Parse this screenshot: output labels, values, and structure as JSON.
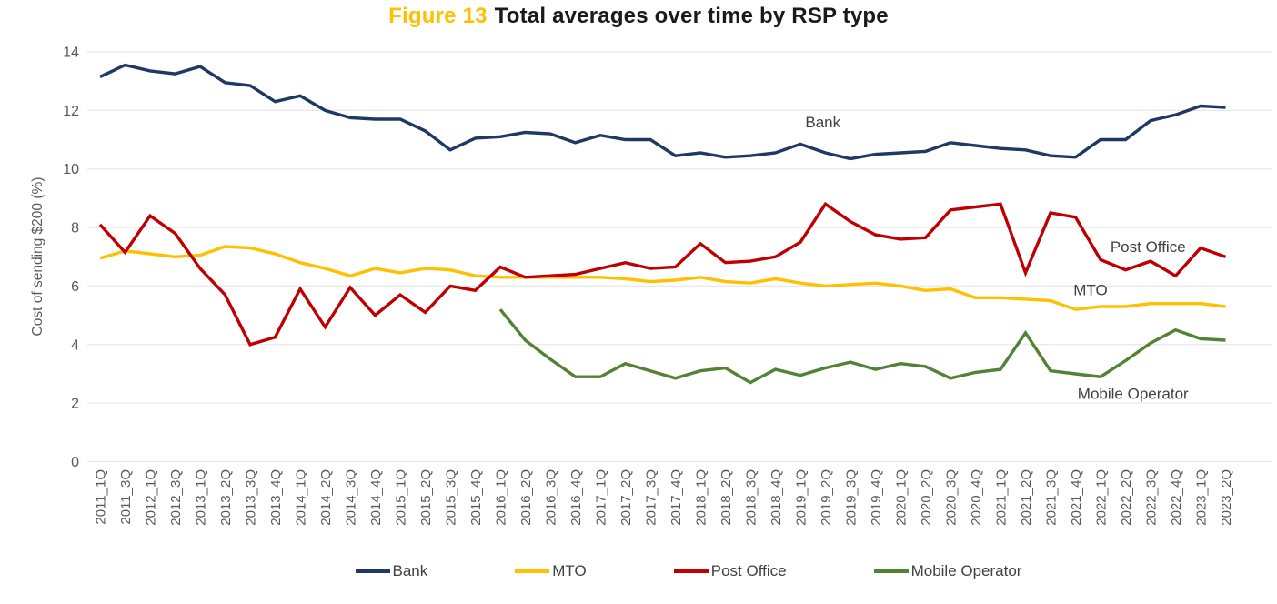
{
  "title": {
    "accent": "Figure 13",
    "main": "Total averages over time by RSP type"
  },
  "colors": {
    "title_accent": "#ffc000",
    "title_main": "#1a1a1a",
    "axis_text": "#595959",
    "annotation_text": "#404040",
    "gridline": "#e8e8e8"
  },
  "chart_data": {
    "type": "line",
    "title": "Figure 13 Total averages over time by RSP type",
    "xlabel": "",
    "ylabel": "Cost of sending $200 (%)",
    "ylim": [
      0,
      14
    ],
    "ytick_step": 2,
    "grid": true,
    "legend_position": "bottom",
    "categories": [
      "2011_1Q",
      "2011_3Q",
      "2012_1Q",
      "2012_3Q",
      "2013_1Q",
      "2013_2Q",
      "2013_3Q",
      "2013_4Q",
      "2014_1Q",
      "2014_2Q",
      "2014_3Q",
      "2014_4Q",
      "2015_1Q",
      "2015_2Q",
      "2015_3Q",
      "2015_4Q",
      "2016_1Q",
      "2016_2Q",
      "2016_3Q",
      "2016_4Q",
      "2017_1Q",
      "2017_2Q",
      "2017_3Q",
      "2017_4Q",
      "2018_1Q",
      "2018_2Q",
      "2018_3Q",
      "2018_4Q",
      "2019_1Q",
      "2019_2Q",
      "2019_3Q",
      "2019_4Q",
      "2020_1Q",
      "2020_2Q",
      "2020_3Q",
      "2020_4Q",
      "2021_1Q",
      "2021_2Q",
      "2021_3Q",
      "2021_4Q",
      "2022_1Q",
      "2022_2Q",
      "2022_3Q",
      "2022_4Q",
      "2023_1Q",
      "2023_2Q"
    ],
    "series": [
      {
        "name": "Bank",
        "color": "#1f3864",
        "values": [
          13.15,
          13.55,
          13.35,
          13.25,
          13.5,
          12.95,
          12.85,
          12.3,
          12.5,
          12.0,
          11.75,
          11.7,
          11.7,
          11.3,
          10.65,
          11.05,
          11.1,
          11.25,
          11.2,
          10.9,
          11.15,
          11.0,
          11.0,
          10.45,
          10.55,
          10.4,
          10.45,
          10.55,
          10.85,
          10.55,
          10.35,
          10.5,
          10.55,
          10.6,
          10.9,
          10.8,
          10.7,
          10.65,
          10.45,
          10.4,
          11.0,
          11.0,
          11.65,
          11.85,
          12.15,
          12.1
        ]
      },
      {
        "name": "MTO",
        "color": "#ffc000",
        "values": [
          6.95,
          7.2,
          7.1,
          7.0,
          7.05,
          7.35,
          7.3,
          7.1,
          6.8,
          6.6,
          6.35,
          6.6,
          6.45,
          6.6,
          6.55,
          6.35,
          6.3,
          6.3,
          6.3,
          6.3,
          6.3,
          6.25,
          6.15,
          6.2,
          6.3,
          6.15,
          6.1,
          6.25,
          6.1,
          6.0,
          6.05,
          6.1,
          6.0,
          5.85,
          5.9,
          5.6,
          5.6,
          5.55,
          5.5,
          5.2,
          5.3,
          5.3,
          5.4,
          5.4,
          5.4,
          5.3
        ]
      },
      {
        "name": "Post Office",
        "color": "#c00000",
        "values": [
          8.1,
          7.15,
          8.4,
          7.8,
          6.6,
          5.7,
          4.0,
          4.25,
          5.9,
          4.6,
          5.95,
          5.0,
          5.7,
          5.1,
          6.0,
          5.85,
          6.65,
          6.3,
          6.35,
          6.4,
          6.6,
          6.8,
          6.6,
          6.65,
          7.45,
          6.8,
          6.85,
          7.0,
          7.5,
          8.8,
          8.2,
          7.75,
          7.6,
          7.65,
          8.6,
          8.7,
          8.8,
          6.45,
          8.5,
          8.35,
          6.9,
          6.55,
          6.85,
          6.35,
          7.3,
          7.0
        ]
      },
      {
        "name": "Mobile Operator",
        "color": "#548235",
        "values": [
          null,
          null,
          null,
          null,
          null,
          null,
          null,
          null,
          null,
          null,
          null,
          null,
          null,
          null,
          null,
          null,
          5.2,
          4.15,
          3.5,
          2.9,
          2.9,
          3.35,
          3.1,
          2.85,
          3.1,
          3.2,
          2.7,
          3.15,
          2.95,
          3.2,
          3.4,
          3.15,
          3.35,
          3.25,
          2.85,
          3.05,
          3.15,
          4.4,
          3.1,
          3.0,
          2.9,
          3.45,
          4.05,
          4.5,
          4.2,
          4.15
        ]
      }
    ],
    "annotations": [
      {
        "label": "Bank",
        "xi": 28.9,
        "yv": 11.6
      },
      {
        "label": "Post Office",
        "xi": 41.9,
        "yv": 7.35
      },
      {
        "label": "MTO",
        "xi": 39.6,
        "yv": 5.88
      },
      {
        "label": "Mobile Operator",
        "xi": 41.3,
        "yv": 2.33
      }
    ]
  }
}
